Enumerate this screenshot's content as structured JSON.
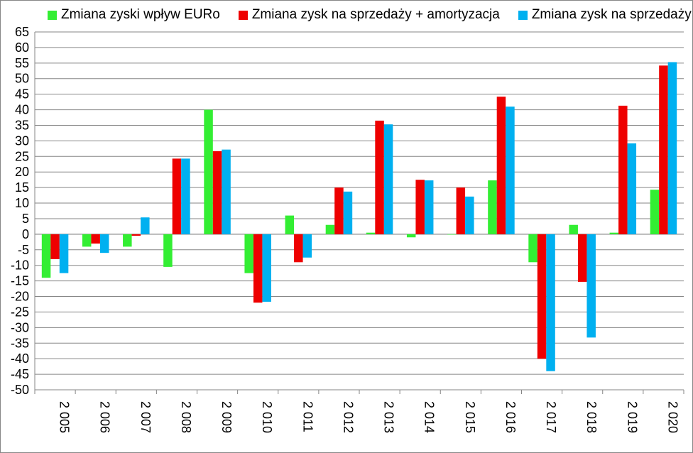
{
  "chart_data": {
    "type": "bar",
    "categories": [
      "2 005",
      "2 006",
      "2 007",
      "2 008",
      "2 009",
      "2 010",
      "2 011",
      "2 012",
      "2 013",
      "2 014",
      "2 015",
      "2 016",
      "2 017",
      "2 018",
      "2 019",
      "2 020"
    ],
    "series": [
      {
        "name": "Zmiana zyski wpływ EURo",
        "color": "#33ee33",
        "values": [
          -14,
          -4,
          -4,
          -10.5,
          40,
          -12.5,
          6,
          3,
          0.5,
          -1,
          0,
          17.3,
          -9,
          3,
          0.5,
          14.3
        ]
      },
      {
        "name": "Zmiana zysk na sprzedaży + amortyzacja",
        "color": "#ee0000",
        "values": [
          -8,
          -3,
          -0.5,
          24.3,
          26.7,
          -22,
          -9,
          15,
          36.5,
          17.5,
          15,
          44.2,
          -40,
          -15.3,
          41.3,
          54.2
        ]
      },
      {
        "name": "Zmiana zysk na sprzedaży",
        "color": "#00b0f0",
        "values": [
          -12.5,
          -6,
          5.4,
          24.3,
          27.2,
          -21.7,
          -7.5,
          13.7,
          35.3,
          17.3,
          12.1,
          41,
          -44,
          -33.2,
          29.2,
          55.3
        ]
      }
    ],
    "ylim": [
      -50,
      65
    ],
    "ytick_step": 5,
    "grid": true,
    "legend_position": "top",
    "title": "",
    "xlabel": "",
    "ylabel": ""
  }
}
